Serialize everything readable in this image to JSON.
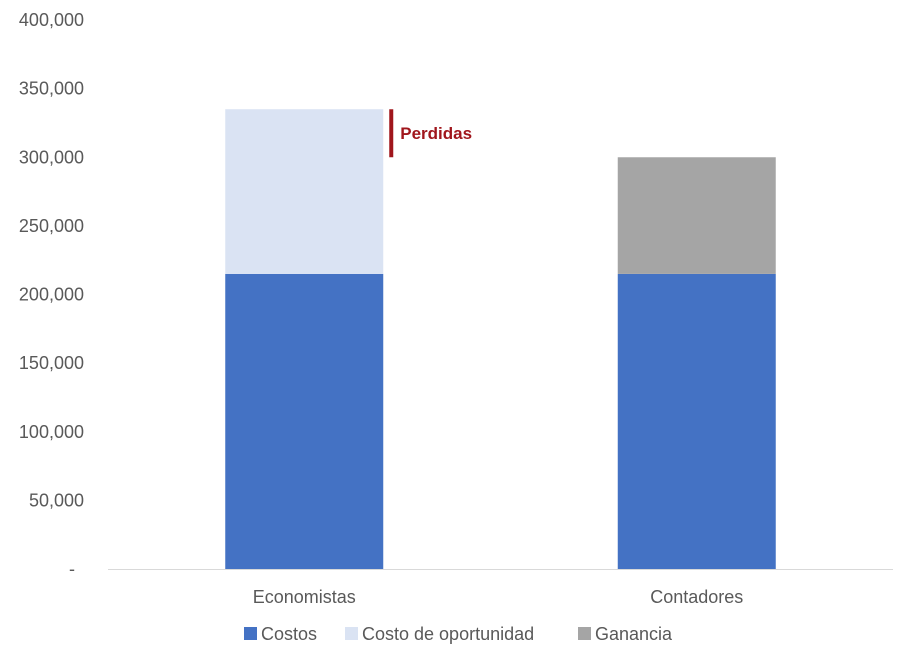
{
  "chart_data": {
    "type": "bar",
    "stacked": true,
    "categories": [
      "Economistas",
      "Contadores"
    ],
    "series": [
      {
        "name": "Costos",
        "values": [
          215000,
          215000
        ],
        "color": "#4472C4"
      },
      {
        "name": "Costo de oportunidad",
        "values": [
          120000,
          0
        ],
        "color": "#DAE3F3"
      },
      {
        "name": "Ganancia",
        "values": [
          0,
          85000
        ],
        "color": "#A5A5A5"
      }
    ],
    "ylim": [
      0,
      400000
    ],
    "yticks": [
      0,
      50000,
      100000,
      150000,
      200000,
      250000,
      300000,
      350000,
      400000
    ],
    "ytick_labels": [
      "-",
      "50,000",
      "100,000",
      "150,000",
      "200,000",
      "250,000",
      "300,000",
      "350,000",
      "400,000"
    ],
    "grid": false,
    "legend_position": "bottom",
    "annotation": {
      "text": "Perdidas",
      "category": "Economistas",
      "y_from": 300000,
      "y_to": 335000,
      "color": "#A0161C"
    },
    "title": "",
    "xlabel": "",
    "ylabel": ""
  }
}
